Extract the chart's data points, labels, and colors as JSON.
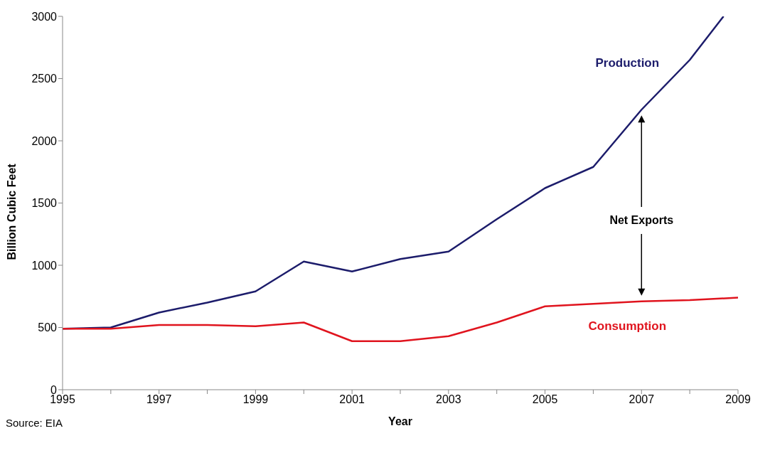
{
  "chart_data": {
    "type": "line",
    "xlabel": "Year",
    "ylabel": "Billion Cubic Feet",
    "xlim": [
      1995,
      2009
    ],
    "xticks": [
      1995,
      {
        "value": 1996,
        "label": null
      },
      1997,
      {
        "value": 1998,
        "label": null
      },
      1999,
      {
        "value": 2000,
        "label": null
      },
      2001,
      {
        "value": 2002,
        "label": null
      },
      2003,
      {
        "value": 2004,
        "label": null
      },
      2005,
      {
        "value": 2006,
        "label": null
      },
      2007,
      {
        "value": 2008,
        "label": null
      },
      2009
    ],
    "ylim": [
      0,
      3000
    ],
    "yticks": [
      0,
      500,
      1000,
      1500,
      2000,
      2500,
      3000
    ],
    "marker": "none",
    "line_style": "solid",
    "series": [
      {
        "name": "Production",
        "color": "#1c1c6b",
        "x": [
          1995,
          1996,
          1997,
          1998,
          1999,
          2000,
          2001,
          2002,
          2003,
          2004,
          2005,
          2006,
          2007,
          2008,
          2008.7
        ],
        "values": [
          490,
          500,
          620,
          700,
          790,
          1030,
          950,
          1050,
          1110,
          1370,
          1620,
          1790,
          2250,
          2650,
          3000
        ]
      },
      {
        "name": "Consumption",
        "color": "#e0141e",
        "x": [
          1995,
          1996,
          1997,
          1998,
          1999,
          2000,
          2001,
          2002,
          2003,
          2004,
          2005,
          2006,
          2007,
          2008,
          2009
        ],
        "values": [
          490,
          490,
          520,
          520,
          510,
          540,
          390,
          390,
          430,
          540,
          670,
          690,
          710,
          720,
          740
        ]
      }
    ],
    "annotations": [
      "Net Exports",
      "Source: EIA"
    ]
  }
}
